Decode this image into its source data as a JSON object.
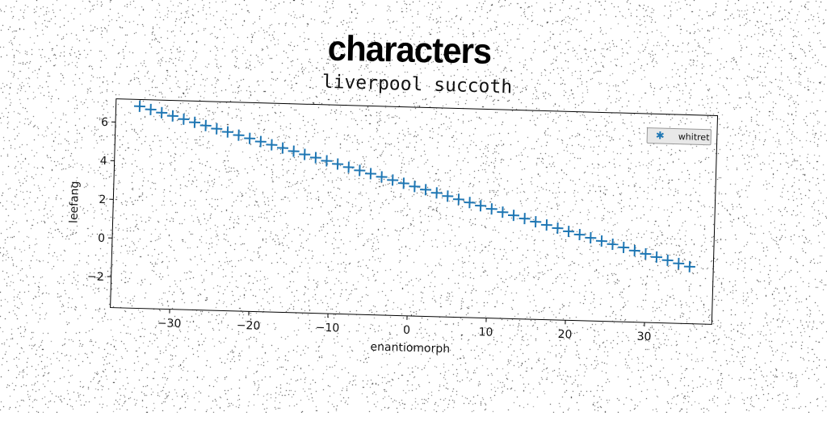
{
  "suptitle": "characters",
  "chart_data": {
    "type": "scatter",
    "title": "liverpool succoth",
    "xlabel": "enantiomorph",
    "ylabel": "leefang",
    "xlim": [
      -37.5,
      38.5
    ],
    "ylim": [
      -3.6,
      7.2
    ],
    "xticks": [
      -30,
      -20,
      -10,
      0,
      10,
      20,
      30
    ],
    "yticks": [
      -2,
      0,
      2,
      4,
      6
    ],
    "marker": "+",
    "grid": false,
    "legend_position": "upper-right",
    "series": [
      {
        "name": "whitret",
        "color": "#1f77b4",
        "x_start": -34.5,
        "x_step": 1.4,
        "count": 51,
        "x": [
          -34.5,
          -33.1,
          -31.7,
          -30.3,
          -28.9,
          -27.5,
          -26.1,
          -24.7,
          -23.3,
          -21.9,
          -20.5,
          -19.1,
          -17.7,
          -16.3,
          -14.9,
          -13.5,
          -12.1,
          -10.7,
          -9.3,
          -7.9,
          -6.5,
          -5.1,
          -3.7,
          -2.3,
          -0.9,
          0.5,
          1.9,
          3.3,
          4.7,
          6.1,
          7.5,
          8.9,
          10.3,
          11.7,
          13.1,
          14.5,
          15.9,
          17.3,
          18.7,
          20.1,
          21.5,
          22.9,
          24.3,
          25.7,
          27.1,
          28.5,
          29.9,
          31.3,
          32.7,
          34.1,
          35.5
        ],
        "y": [
          6.85,
          6.7,
          6.55,
          6.4,
          6.25,
          6.1,
          5.95,
          5.8,
          5.65,
          5.5,
          5.35,
          5.2,
          5.05,
          4.9,
          4.75,
          4.6,
          4.45,
          4.3,
          4.15,
          4.0,
          3.85,
          3.7,
          3.55,
          3.4,
          3.25,
          3.1,
          2.95,
          2.8,
          2.65,
          2.5,
          2.35,
          2.2,
          2.05,
          1.9,
          1.75,
          1.6,
          1.45,
          1.3,
          1.15,
          1.0,
          0.85,
          0.7,
          0.55,
          0.4,
          0.25,
          0.1,
          -0.05,
          -0.2,
          -0.35,
          -0.5,
          -0.65
        ]
      }
    ]
  }
}
